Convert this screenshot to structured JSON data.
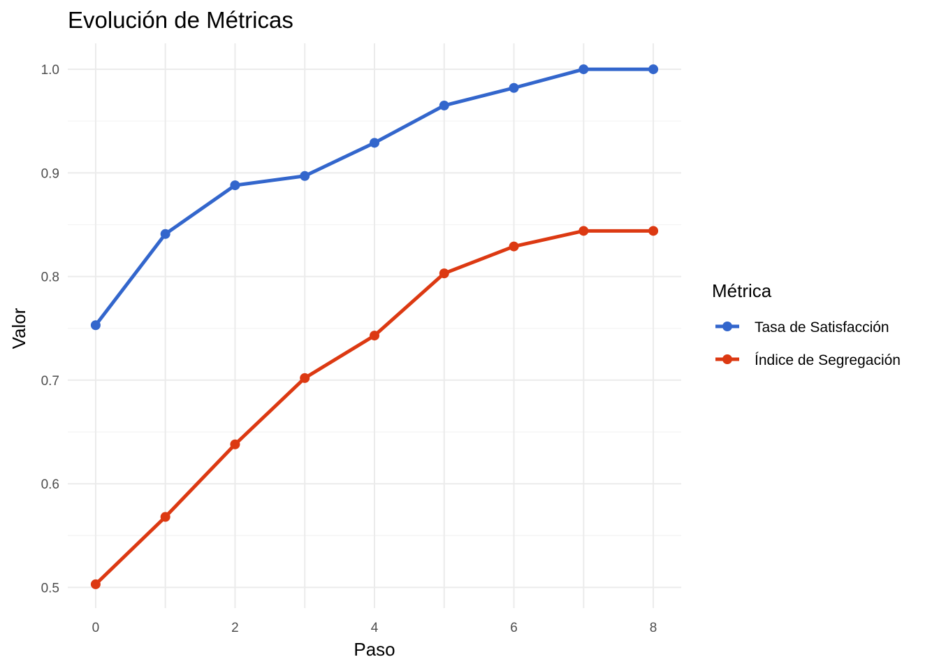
{
  "chart_data": {
    "type": "line",
    "title": "Evolución de Métricas",
    "xlabel": "Paso",
    "ylabel": "Valor",
    "x": [
      0,
      1,
      2,
      3,
      4,
      5,
      6,
      7,
      8
    ],
    "xlim": [
      -0.4,
      8.4
    ],
    "ylim": [
      0.48,
      1.025
    ],
    "x_ticks": [
      0,
      2,
      4,
      6,
      8
    ],
    "y_ticks": [
      0.5,
      0.6,
      0.7,
      0.8,
      0.9,
      1.0
    ],
    "y_tick_labels": [
      "0.5",
      "0.6",
      "0.7",
      "0.8",
      "0.9",
      "1.0"
    ],
    "grid": true,
    "legend": {
      "title": "Métrica",
      "position": "right"
    },
    "series": [
      {
        "name": "Tasa de Satisfacción",
        "color": "#3366cc",
        "values": [
          0.753,
          0.841,
          0.888,
          0.897,
          0.929,
          0.965,
          0.982,
          1.0,
          1.0
        ]
      },
      {
        "name": "Índice de Segregación",
        "color": "#dc3912",
        "values": [
          0.503,
          0.568,
          0.638,
          0.702,
          0.743,
          0.803,
          0.829,
          0.844,
          0.844
        ]
      }
    ]
  }
}
